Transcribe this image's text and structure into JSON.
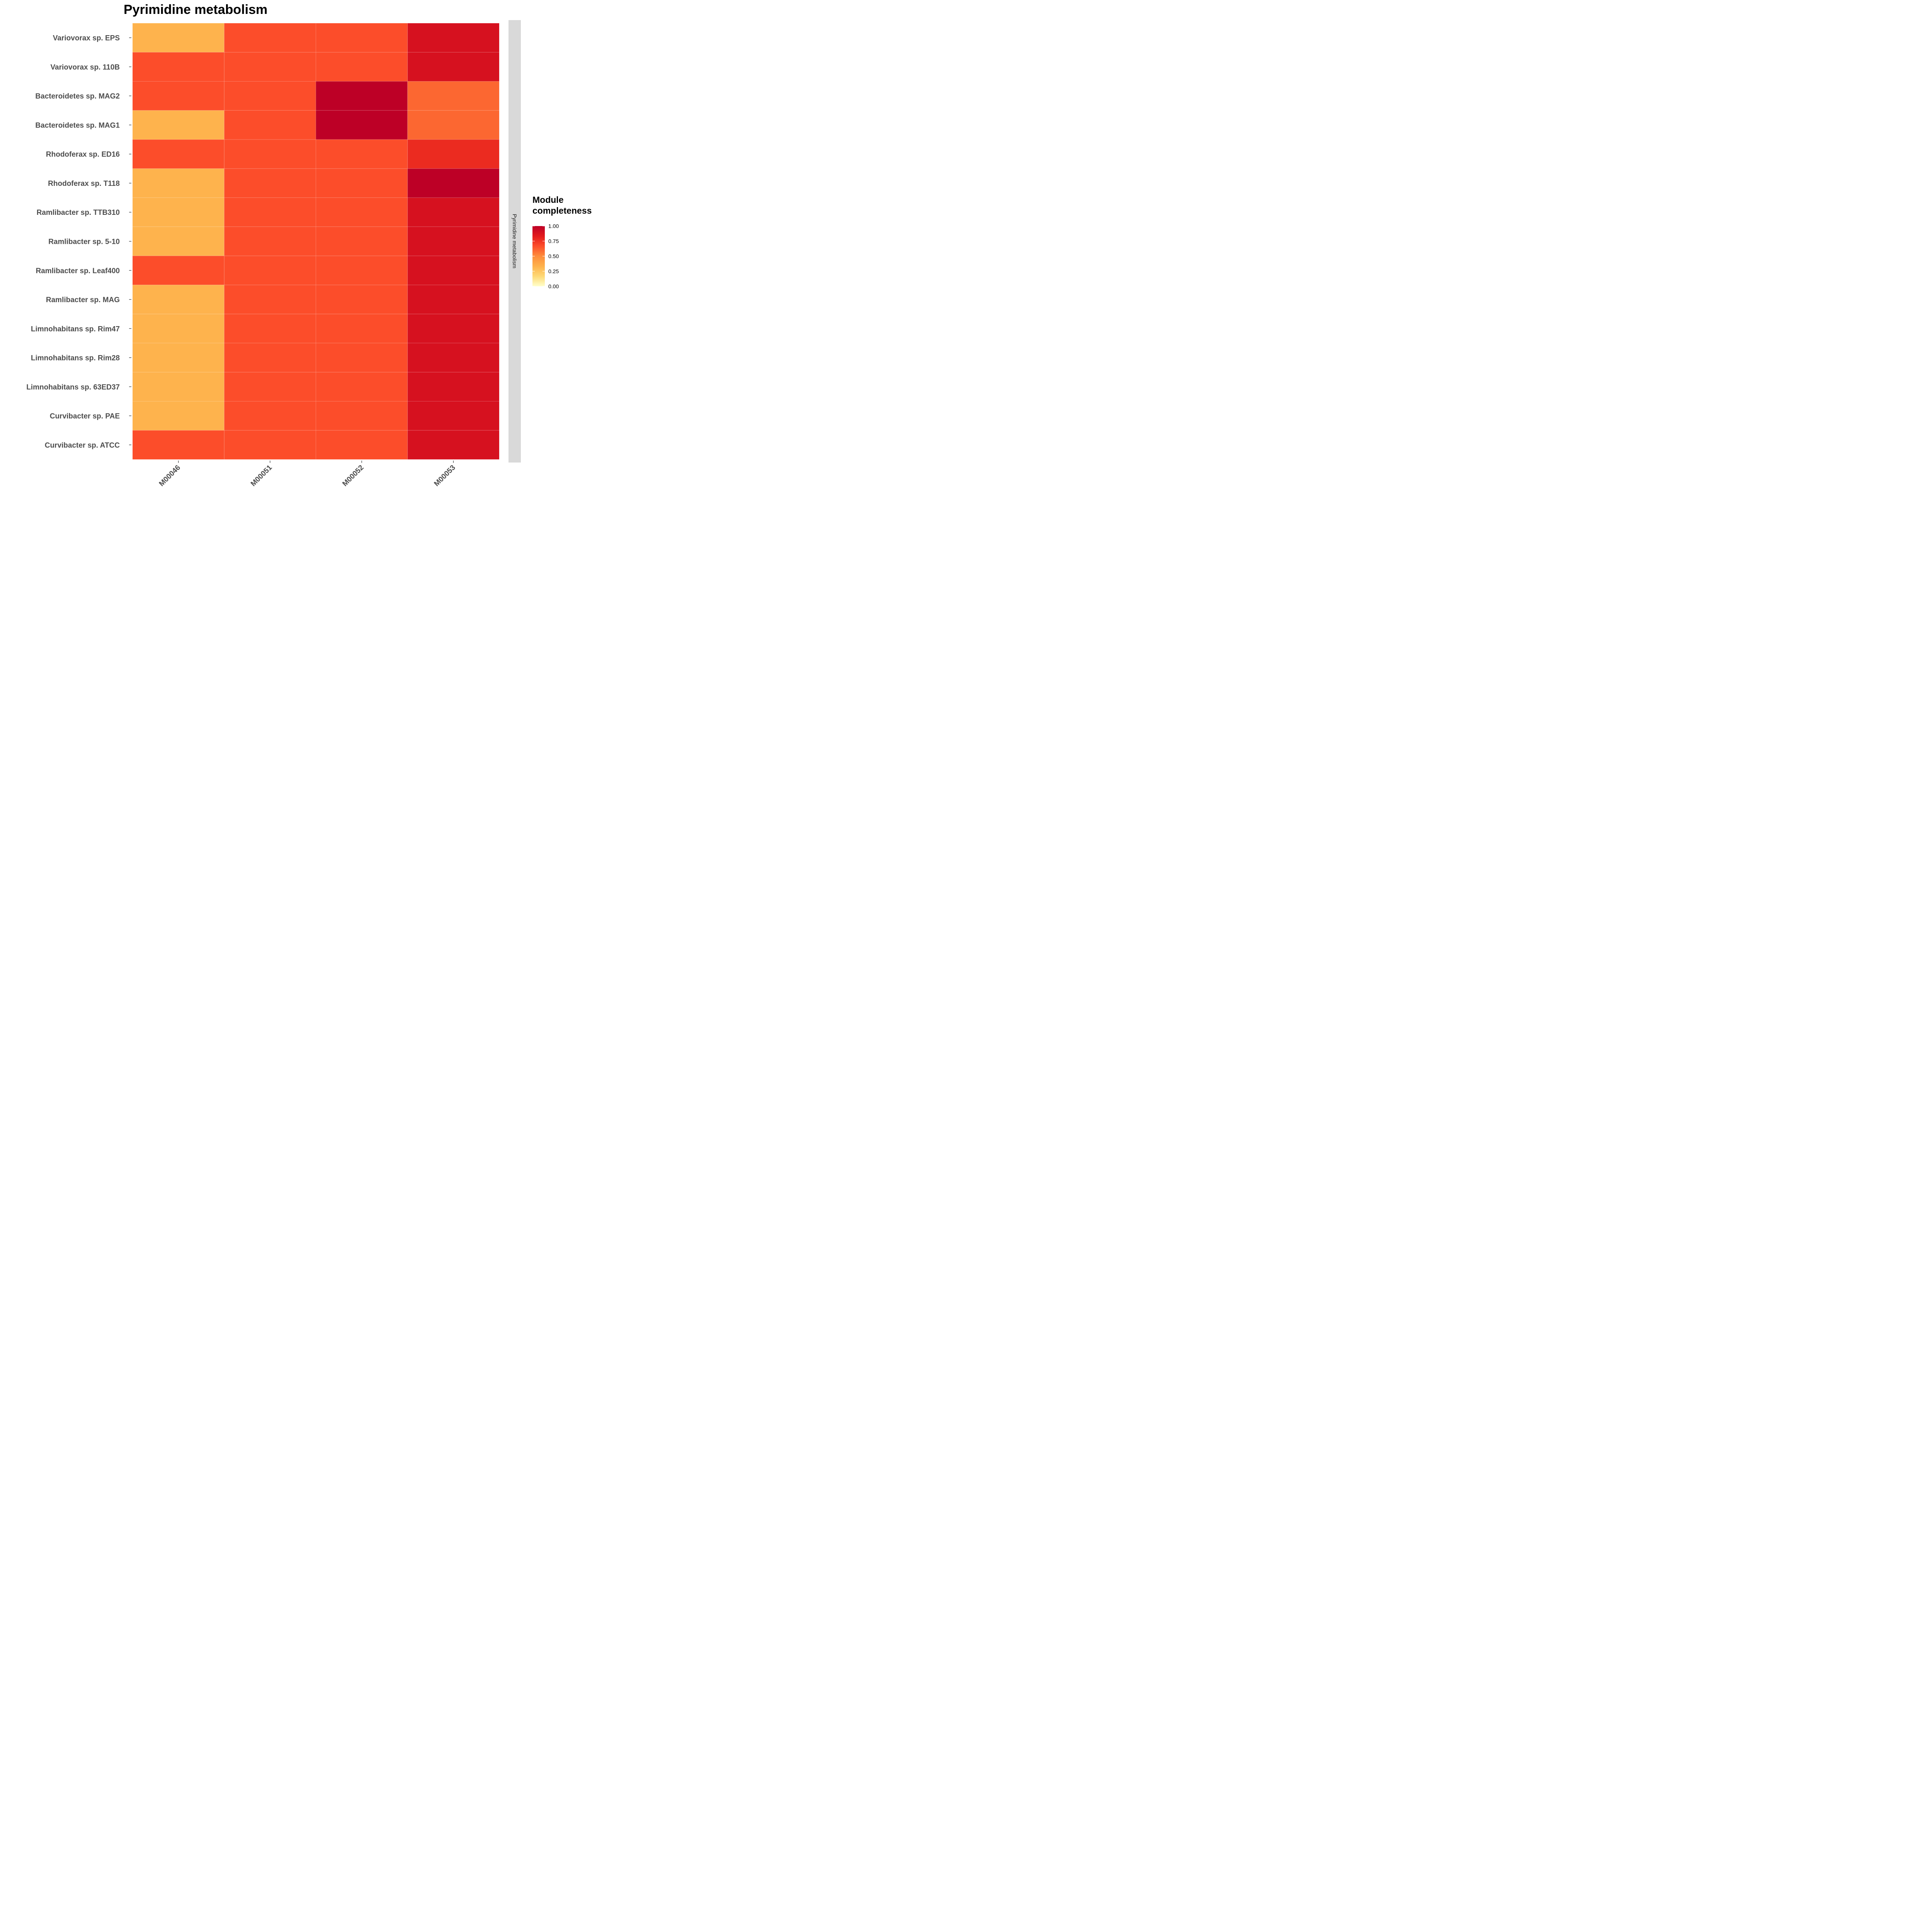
{
  "chart_data": {
    "type": "heatmap",
    "title": "Pyrimidine metabolism",
    "xlabel": "",
    "ylabel": "",
    "facet_label": "Pyrimidine metabolism",
    "x_categories": [
      "M00046",
      "M00051",
      "M00052",
      "M00053"
    ],
    "y_categories": [
      "Variovorax sp. EPS",
      "Variovorax sp. 110B",
      "Bacteroidetes sp. MAG2",
      "Bacteroidetes sp. MAG1",
      "Rhodoferax sp. ED16",
      "Rhodoferax sp. T118",
      "Ramlibacter sp. TTB310",
      "Ramlibacter sp. 5-10",
      "Ramlibacter sp. Leaf400",
      "Ramlibacter sp. MAG",
      "Limnohabitans sp. Rim47",
      "Limnohabitans sp. Rim28",
      "Limnohabitans sp. 63ED37",
      "Curvibacter sp. PAE",
      "Curvibacter sp. ATCC"
    ],
    "values": [
      [
        0.33,
        0.67,
        0.67,
        0.89
      ],
      [
        0.67,
        0.67,
        0.67,
        0.89
      ],
      [
        0.67,
        0.67,
        1.0,
        0.6
      ],
      [
        0.33,
        0.67,
        1.0,
        0.6
      ],
      [
        0.67,
        0.67,
        0.67,
        0.78
      ],
      [
        0.33,
        0.67,
        0.67,
        1.0
      ],
      [
        0.33,
        0.67,
        0.67,
        0.89
      ],
      [
        0.33,
        0.67,
        0.67,
        0.89
      ],
      [
        0.67,
        0.67,
        0.67,
        0.89
      ],
      [
        0.33,
        0.67,
        0.67,
        0.89
      ],
      [
        0.33,
        0.67,
        0.67,
        0.89
      ],
      [
        0.33,
        0.67,
        0.67,
        0.89
      ],
      [
        0.33,
        0.67,
        0.67,
        0.89
      ],
      [
        0.33,
        0.67,
        0.67,
        0.89
      ],
      [
        0.67,
        0.67,
        0.67,
        0.89
      ]
    ],
    "color_scale": {
      "low_color": "#ffffcc",
      "high_color": "#bd0026",
      "stops": [
        "#ffffcc",
        "#fed976",
        "#feb24c",
        "#fd8d3c",
        "#fc4e2a",
        "#e31a1c",
        "#bd0026"
      ],
      "limits": [
        0,
        1
      ]
    },
    "legend": {
      "title": "Module completeness",
      "title_lines": [
        "Module",
        "completeness"
      ],
      "labels": [
        "1.00",
        "0.75",
        "0.50",
        "0.25",
        "0.00"
      ],
      "placement": "right"
    },
    "grid": false
  }
}
